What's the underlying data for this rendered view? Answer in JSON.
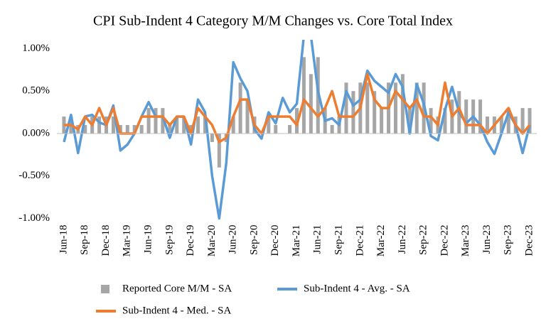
{
  "chart_data": {
    "type": "combo",
    "title": "CPI Sub-Indent 4 Category M/M Changes vs. Core Total Index",
    "categories": [
      "Jun-18",
      null,
      null,
      "Sep-18",
      null,
      null,
      "Dec-18",
      null,
      null,
      "Mar-19",
      null,
      null,
      "Jun-19",
      null,
      null,
      "Sep-19",
      null,
      null,
      "Dec-19",
      null,
      null,
      "Mar-20",
      null,
      null,
      "Jun-20",
      null,
      null,
      "Sep-20",
      null,
      null,
      "Dec-20",
      null,
      null,
      "Mar-21",
      null,
      null,
      "Jun-21",
      null,
      null,
      "Sep-21",
      null,
      null,
      "Dec-21",
      null,
      null,
      "Mar-22",
      null,
      null,
      "Jun-22",
      null,
      null,
      "Sep-22",
      null,
      null,
      "Dec-22",
      null,
      null,
      "Mar-23",
      null,
      null,
      "Jun-23",
      null,
      null,
      "Sep-23",
      null,
      null,
      "Dec-23"
    ],
    "series": [
      {
        "name": "Reported Core M/M - SA",
        "type": "bar",
        "color": "#a6a6a6",
        "values": [
          0.2,
          0.2,
          0.1,
          0.1,
          0.2,
          0.2,
          0.2,
          0.2,
          0.1,
          0.1,
          0.1,
          0.1,
          0.3,
          0.3,
          0.3,
          0.1,
          0.2,
          0.2,
          0.1,
          0.2,
          0.2,
          -0.1,
          -0.4,
          -0.1,
          0.2,
          0.6,
          0.4,
          0.2,
          0.0,
          0.2,
          0.1,
          0.0,
          0.1,
          0.3,
          0.9,
          0.7,
          0.9,
          0.3,
          0.1,
          0.2,
          0.6,
          0.5,
          0.6,
          0.6,
          0.5,
          0.3,
          0.6,
          0.6,
          0.7,
          0.3,
          0.6,
          0.6,
          0.3,
          0.2,
          0.3,
          0.4,
          0.5,
          0.4,
          0.4,
          0.4,
          0.2,
          0.2,
          0.2,
          0.3,
          0.2,
          0.3,
          0.3
        ]
      },
      {
        "name": "Sub-Indent 4 - Avg. - SA",
        "type": "line",
        "color": "#5b9bd5",
        "values": [
          -0.1,
          0.22,
          -0.23,
          0.2,
          0.22,
          0.13,
          0.1,
          0.33,
          -0.2,
          -0.13,
          0.0,
          0.2,
          0.37,
          0.2,
          0.2,
          -0.05,
          0.2,
          0.2,
          -0.13,
          0.4,
          0.25,
          -0.5,
          -1.0,
          -0.35,
          0.84,
          0.65,
          0.5,
          0.05,
          -0.06,
          0.25,
          0.12,
          0.42,
          0.25,
          0.35,
          1.15,
          1.15,
          0.5,
          0.15,
          0.18,
          0.1,
          0.5,
          0.33,
          0.4,
          0.74,
          0.62,
          0.55,
          0.48,
          0.7,
          0.55,
          0.0,
          0.58,
          0.35,
          -0.03,
          -0.08,
          0.28,
          0.55,
          0.25,
          0.12,
          0.2,
          0.1,
          -0.1,
          -0.24,
          0.0,
          0.25,
          0.1,
          -0.23,
          0.1
        ]
      },
      {
        "name": "Sub-Indent 4 - Med. - SA",
        "type": "line",
        "color": "#ed7d31",
        "values": [
          0.1,
          0.1,
          0.05,
          0.2,
          0.1,
          0.3,
          0.1,
          0.3,
          0.0,
          0.0,
          0.0,
          0.2,
          0.2,
          0.2,
          0.2,
          0.1,
          0.2,
          0.2,
          0.0,
          0.3,
          0.2,
          0.1,
          -0.1,
          -0.05,
          0.2,
          0.4,
          0.4,
          0.1,
          0.0,
          0.2,
          0.2,
          0.2,
          0.2,
          0.1,
          0.4,
          0.3,
          0.2,
          0.3,
          0.5,
          0.2,
          0.2,
          0.2,
          0.3,
          0.7,
          0.4,
          0.3,
          0.3,
          0.5,
          0.4,
          0.3,
          0.4,
          0.2,
          0.2,
          0.1,
          0.6,
          0.2,
          0.3,
          0.1,
          0.1,
          0.1,
          0.0,
          0.1,
          0.2,
          0.3,
          0.1,
          0.0,
          0.1
        ]
      }
    ],
    "ylim": [
      -1.0,
      1.1
    ],
    "yticks": [
      {
        "value": -1,
        "label": "-1.00%"
      },
      {
        "value": -0.5,
        "label": "-0.50%"
      },
      {
        "value": 0,
        "label": "0.00%"
      },
      {
        "value": 0.5,
        "label": "0.50%"
      },
      {
        "value": 1,
        "label": "1.00%"
      }
    ],
    "grid": false,
    "legend": "bottom"
  }
}
